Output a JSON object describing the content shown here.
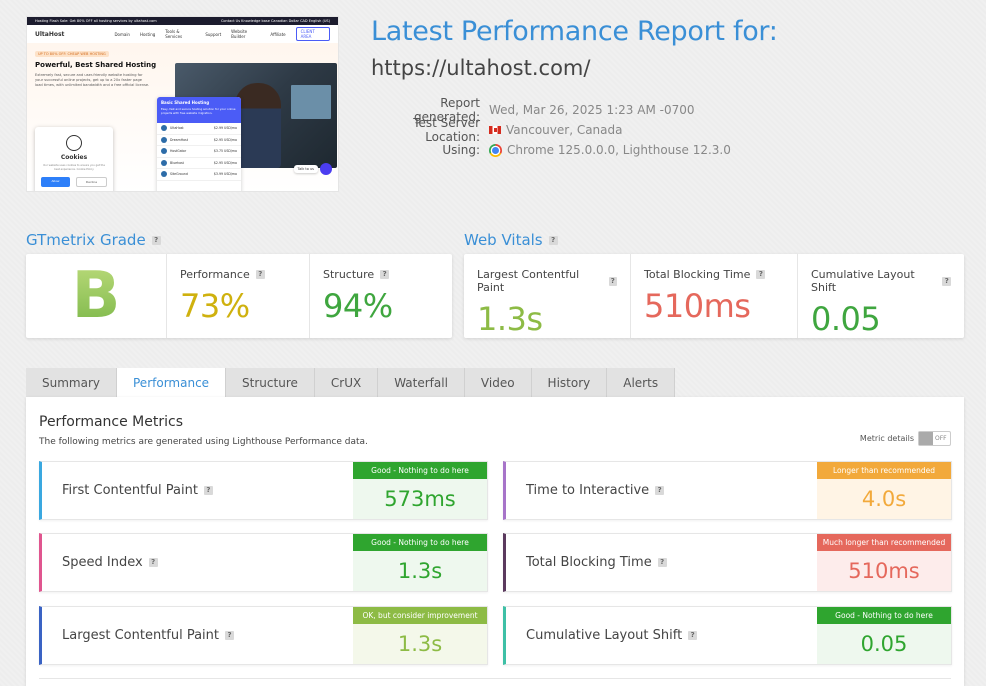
{
  "thumbnail": {
    "topbar_left": "Hosting Flash Sale: Get 80% OFF all hosting services by ultahost.com",
    "topbar_right": "Contact Us   Knowledge base   Canadian Dollar CAD   English (US)",
    "logo": "UltaHost",
    "nav": [
      "Domain",
      "Hosting",
      "Tools & Services",
      "Support",
      "Website Builder",
      "Affiliate"
    ],
    "cta": "CLIENT AREA",
    "badge": "UP TO 80% OFF: CHEAP WEB HOSTING",
    "hero_title": "Powerful, Best Shared Hosting",
    "hero_desc": "Extremely fast, secure and user-friendly website hosting for your successful online projects, get up to a 20x faster page load times, with unlimited bandwidth and a free official license.",
    "card_title": "Basic Shared Hosting",
    "card_sub": "Easy, fast and secure hosting solution for your online projects with free website migration.",
    "providers": [
      {
        "name": "UltaHost",
        "price": "$2.99 USD/mo"
      },
      {
        "name": "DreamHost",
        "price": "$2.95 USD/mo"
      },
      {
        "name": "HostGator",
        "price": "$3.75 USD/mo"
      },
      {
        "name": "Bluehost",
        "price": "$2.95 USD/mo"
      },
      {
        "name": "SiteGround",
        "price": "$3.99 USD/mo"
      }
    ],
    "cookie_title": "Cookies",
    "cookie_desc": "Our website uses cookies to ensure you get the best experience. Cookie Policy",
    "cookie_allow": "Allow",
    "cookie_decline": "Decline",
    "chat": "Talk to us"
  },
  "report": {
    "title": "Latest Performance Report for:",
    "url": "https://ultahost.com/",
    "generated_label": "Report generated:",
    "generated_value": "Wed, Mar 26, 2025 1:23 AM -0700",
    "location_label": "Test Server Location:",
    "location_value": "Vancouver, Canada",
    "using_label": "Using:",
    "using_value": "Chrome 125.0.0.0, Lighthouse 12.3.0"
  },
  "grade": {
    "heading": "GTmetrix Grade",
    "letter": "B",
    "performance_label": "Performance",
    "performance_value": "73%",
    "structure_label": "Structure",
    "structure_value": "94%"
  },
  "vitals": {
    "heading": "Web Vitals",
    "lcp_label": "Largest Contentful Paint",
    "lcp_value": "1.3s",
    "tbt_label": "Total Blocking Time",
    "tbt_value": "510ms",
    "cls_label": "Cumulative Layout Shift",
    "cls_value": "0.05"
  },
  "tabs": [
    "Summary",
    "Performance",
    "Structure",
    "CrUX",
    "Waterfall",
    "Video",
    "History",
    "Alerts"
  ],
  "active_tab": "Performance",
  "performance": {
    "title": "Performance Metrics",
    "desc": "The following metrics are generated using Lighthouse Performance data.",
    "metric_details_label": "Metric details",
    "toggle_label": "OFF",
    "metrics": [
      {
        "name": "First Contentful Paint",
        "status": "Good - Nothing to do here",
        "value": "573ms",
        "accent": "#3aa8e0",
        "status_color": "#2fa52f",
        "value_color": "#2fa52f",
        "bg": "#eef8ee"
      },
      {
        "name": "Time to Interactive",
        "status": "Longer than recommended",
        "value": "4.0s",
        "accent": "#a774c9",
        "status_color": "#f2a93b",
        "value_color": "#f2a93b",
        "bg": "#fff4e5"
      },
      {
        "name": "Speed Index",
        "status": "Good - Nothing to do here",
        "value": "1.3s",
        "accent": "#e0558f",
        "status_color": "#2fa52f",
        "value_color": "#2fa52f",
        "bg": "#eef8ee"
      },
      {
        "name": "Total Blocking Time",
        "status": "Much longer than recommended",
        "value": "510ms",
        "accent": "#5b3a5e",
        "status_color": "#e5685c",
        "value_color": "#e5685c",
        "bg": "#fdeceb"
      },
      {
        "name": "Largest Contentful Paint",
        "status": "OK, but consider improvement",
        "value": "1.3s",
        "accent": "#3a63c4",
        "status_color": "#8dbb45",
        "value_color": "#8dbb45",
        "bg": "#f4f8ea"
      },
      {
        "name": "Cumulative Layout Shift",
        "status": "Good - Nothing to do here",
        "value": "0.05",
        "accent": "#3ec0a6",
        "status_color": "#2fa52f",
        "value_color": "#2fa52f",
        "bg": "#eef8ee"
      }
    ]
  },
  "colors": {
    "accent_blue": "#3a8fd6",
    "grade_green": "#8dc14f",
    "perf_yellow": "#cfb10e",
    "structure_green": "#3fa63f",
    "lcp_green": "#8dbb45",
    "tbt_red": "#e5685c",
    "cls_green": "#3fa63f"
  }
}
